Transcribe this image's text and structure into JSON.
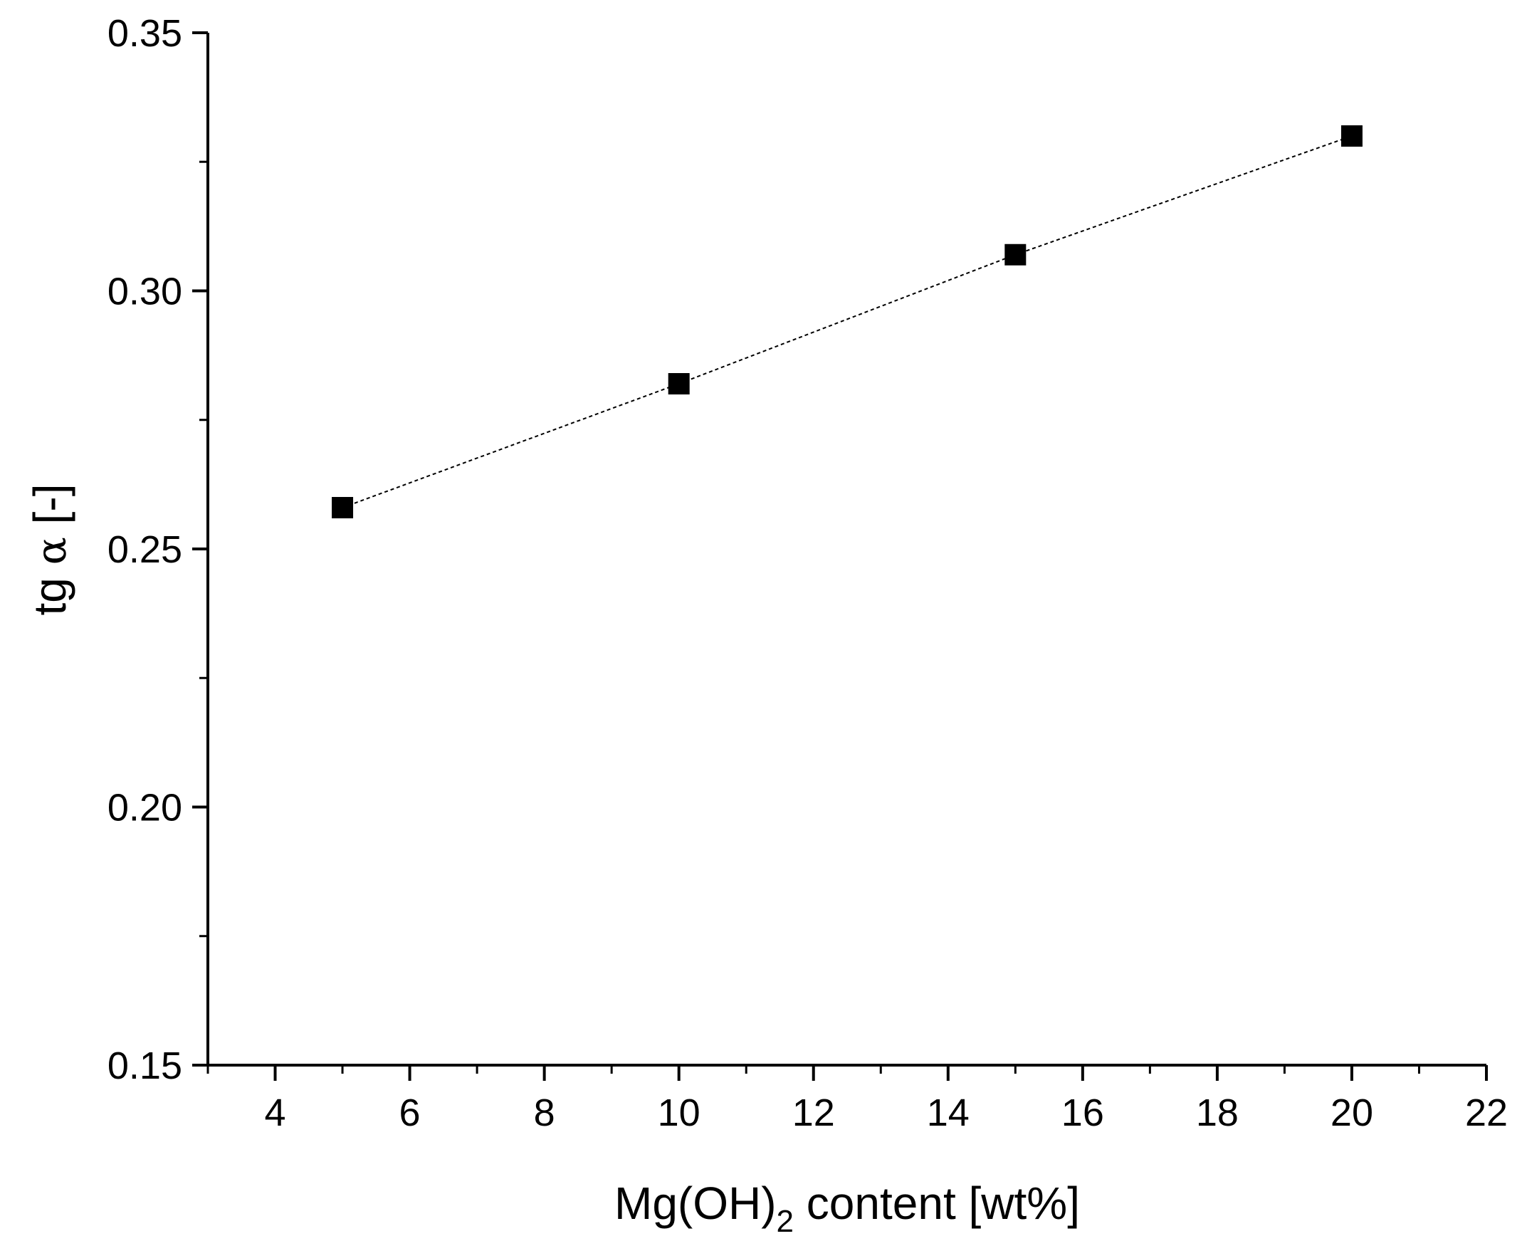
{
  "chart_data": {
    "type": "line",
    "title": "",
    "xlabel": {
      "main": "Mg(OH)",
      "subscript": "2",
      "suffix": " content [wt%]"
    },
    "ylabel": {
      "main": "tg ",
      "symbol": "α",
      "suffix": " [-]"
    },
    "xlim": [
      3,
      22
    ],
    "ylim": [
      0.15,
      0.35
    ],
    "x_ticks": [
      "4",
      "6",
      "8",
      "10",
      "12",
      "14",
      "16",
      "18",
      "20",
      "22"
    ],
    "y_ticks": [
      "0.15",
      "0.20",
      "0.25",
      "0.30",
      "0.35"
    ],
    "x_tick_values": [
      4,
      6,
      8,
      10,
      12,
      14,
      16,
      18,
      20,
      22
    ],
    "y_tick_values": [
      0.15,
      0.2,
      0.25,
      0.3,
      0.35
    ],
    "x_minor_ticks": [
      3,
      5,
      7,
      9,
      11,
      13,
      15,
      17,
      19,
      21
    ],
    "y_minor_ticks": [
      0.175,
      0.225,
      0.275,
      0.325
    ],
    "series": [
      {
        "name": "tg alpha",
        "x": [
          5,
          10,
          15,
          20
        ],
        "y": [
          0.258,
          0.282,
          0.307,
          0.33
        ],
        "marker": "square",
        "line_style": "dotted",
        "color": "#000000"
      }
    ],
    "grid": false
  }
}
